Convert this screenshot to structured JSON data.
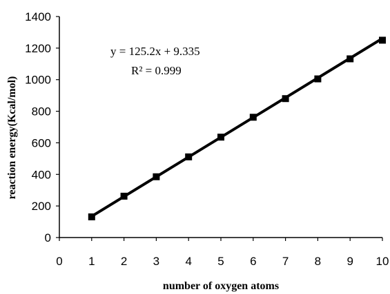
{
  "chart_data": {
    "type": "scatter",
    "title": "",
    "xlabel": "number of oxygen atoms",
    "ylabel": "reaction energy(Kcal/mol)",
    "xlim": [
      0,
      10
    ],
    "ylim": [
      0,
      1400
    ],
    "xticks": [
      "0",
      "1",
      "2",
      "3",
      "4",
      "5",
      "6",
      "7",
      "8",
      "9",
      "10"
    ],
    "yticks": [
      "0",
      "200",
      "400",
      "600",
      "800",
      "1000",
      "1200",
      "1400"
    ],
    "grid": false,
    "series": [
      {
        "x": [
          1,
          2,
          3,
          4,
          5,
          6,
          7,
          8,
          9,
          10
        ],
        "y": [
          131,
          262,
          385,
          511,
          636,
          762,
          880,
          1005,
          1132,
          1250
        ],
        "color": "#000000"
      }
    ],
    "trendline": {
      "slope": 125.2,
      "intercept": 9.335,
      "color": "#000000"
    },
    "annotations": {
      "equation": "y = 125.2x + 9.335",
      "r_squared": "R² = 0.999"
    }
  }
}
